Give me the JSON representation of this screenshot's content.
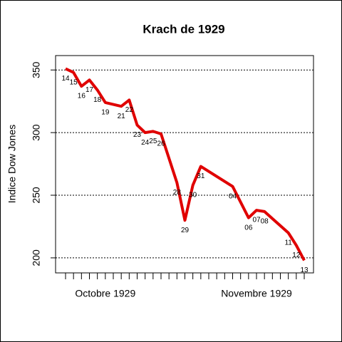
{
  "chart_data": {
    "type": "line",
    "title": "Krach de 1929",
    "y_label": "Indice Dow Jones",
    "x": [
      "1929-10-14",
      "1929-10-15",
      "1929-10-16",
      "1929-10-17",
      "1929-10-18",
      "1929-10-19",
      "1929-10-21",
      "1929-10-22",
      "1929-10-23",
      "1929-10-24",
      "1929-10-25",
      "1929-10-26",
      "1929-10-28",
      "1929-10-29",
      "1929-10-30",
      "1929-10-31",
      "1929-11-04",
      "1929-11-06",
      "1929-11-07",
      "1929-11-08",
      "1929-11-11",
      "1929-11-12",
      "1929-11-13"
    ],
    "point_labels": [
      "14",
      "15",
      "16",
      "17",
      "18",
      "19",
      "21",
      "22",
      "23",
      "24",
      "25",
      "26",
      "28",
      "29",
      "30",
      "31",
      "04",
      "06",
      "07",
      "08",
      "11",
      "12",
      "13"
    ],
    "series": [
      {
        "color": "#e00000",
        "values": [
          351,
          348,
          337,
          342,
          334,
          324,
          321,
          326,
          306,
          300,
          301,
          299,
          260,
          230,
          258,
          273,
          257,
          232,
          238,
          237,
          220,
          210,
          198
        ]
      }
    ],
    "xlim": [
      "1929-10-14",
      "1929-11-13"
    ],
    "xticks": [
      "1929-10-14",
      "1929-10-15",
      "1929-10-16",
      "1929-10-17",
      "1929-10-18",
      "1929-10-19",
      "1929-10-20",
      "1929-10-21",
      "1929-10-22",
      "1929-10-23",
      "1929-10-24",
      "1929-10-25",
      "1929-10-26",
      "1929-10-27",
      "1929-10-28",
      "1929-10-29",
      "1929-10-30",
      "1929-10-31",
      "1929-11-01",
      "1929-11-02",
      "1929-11-03",
      "1929-11-04",
      "1929-11-05",
      "1929-11-06",
      "1929-11-07",
      "1929-11-08",
      "1929-11-09",
      "1929-11-10",
      "1929-11-11",
      "1929-11-12",
      "1929-11-13"
    ],
    "xtick_labels": [
      {
        "value": "1929-10-19",
        "label": "Octobre 1929"
      },
      {
        "value": "1929-11-07",
        "label": "Novembre 1929"
      }
    ],
    "ylim": [
      188,
      361.5
    ],
    "yticks": [
      200,
      250,
      300,
      350
    ],
    "grid": true
  }
}
